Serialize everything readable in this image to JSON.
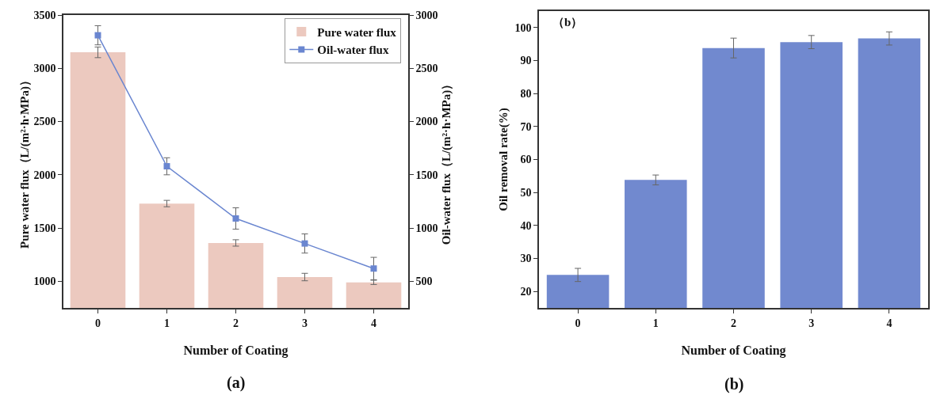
{
  "chart_data": [
    {
      "type": "bar",
      "xlabel": "Number of Coating",
      "ylabel": "Pure water flux（L/(m²·h·MPa)）",
      "y2label": "Oil-water flux（L/(m²·h·MPa)）",
      "categories": [
        "0",
        "1",
        "2",
        "3",
        "4"
      ],
      "series": [
        {
          "name": "Pure water flux",
          "color": "#ecc9bf",
          "values": [
            3150,
            1730,
            1360,
            1040,
            990
          ],
          "errors": [
            50,
            30,
            30,
            35,
            20
          ]
        },
        {
          "name": "Oil-water flux",
          "type": "line",
          "axis": "y2",
          "color": "#6a86d0",
          "marker": "square",
          "values": [
            2810,
            1580,
            1090,
            855,
            620
          ],
          "errors": [
            90,
            80,
            100,
            90,
            105
          ]
        }
      ],
      "ylim": [
        750,
        3500
      ],
      "yticks": [
        1000,
        1500,
        2000,
        2500,
        3000,
        3500
      ],
      "y2lim": [
        250,
        3000
      ],
      "y2ticks": [
        500,
        1000,
        1500,
        2000,
        2500,
        3000
      ],
      "legend": "top right",
      "grid": false,
      "annotations": [
        "(a)"
      ]
    },
    {
      "type": "bar",
      "xlabel": "Number of Coating",
      "ylabel": "Oil removal rate(%)",
      "categories": [
        "0",
        "1",
        "2",
        "3",
        "4"
      ],
      "series": [
        {
          "color": "#7189cf",
          "values": [
            25,
            53.8,
            93.8,
            95.6,
            96.7
          ],
          "errors": [
            2,
            1.5,
            3,
            2,
            2
          ]
        }
      ],
      "ylim": [
        15,
        105
      ],
      "yticks": [
        20,
        30,
        40,
        50,
        60,
        70,
        80,
        90,
        100
      ],
      "grid": false,
      "annotations": [
        "（b）",
        "(b)"
      ]
    }
  ]
}
